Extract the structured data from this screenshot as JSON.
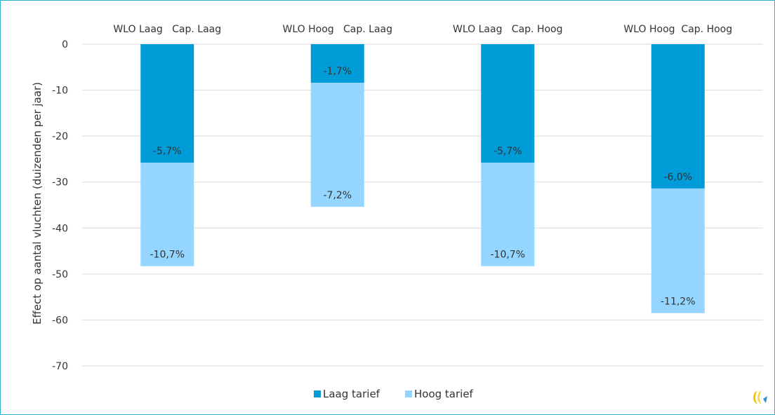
{
  "chart_data": {
    "type": "bar",
    "stacked": true,
    "categories": [
      "WLO Laag   Cap. Laag",
      "WLO Hoog   Cap. Laag",
      "WLO Laag   Cap. Hoog",
      "WLO Hoog  Cap. Hoog"
    ],
    "series": [
      {
        "name": "Laag tarief",
        "color": "#009cd7",
        "values": [
          -25.8,
          -8.4,
          -25.8,
          -31.4
        ],
        "labels": [
          "-5,7%",
          "-1,7%",
          "-5,7%",
          "-6,0%"
        ]
      },
      {
        "name": "Hoog tarief",
        "color": "#94d6ff",
        "values": [
          -22.5,
          -27.0,
          -22.5,
          -27.1
        ],
        "labels": [
          "-10,7%",
          "-7,2%",
          "-10,7%",
          "-11,2%"
        ]
      }
    ],
    "ylabel": "Effect op aantal vluchten (duizenden per jaar)",
    "xlabel": "",
    "ylim": [
      -70,
      0
    ],
    "yticks": [
      0,
      -10,
      -20,
      -30,
      -40,
      -50,
      -60,
      -70
    ],
    "category_labels_position": "top",
    "grid": true,
    "legend": "bottom-center",
    "gridline_color": "#d9d9d9"
  }
}
